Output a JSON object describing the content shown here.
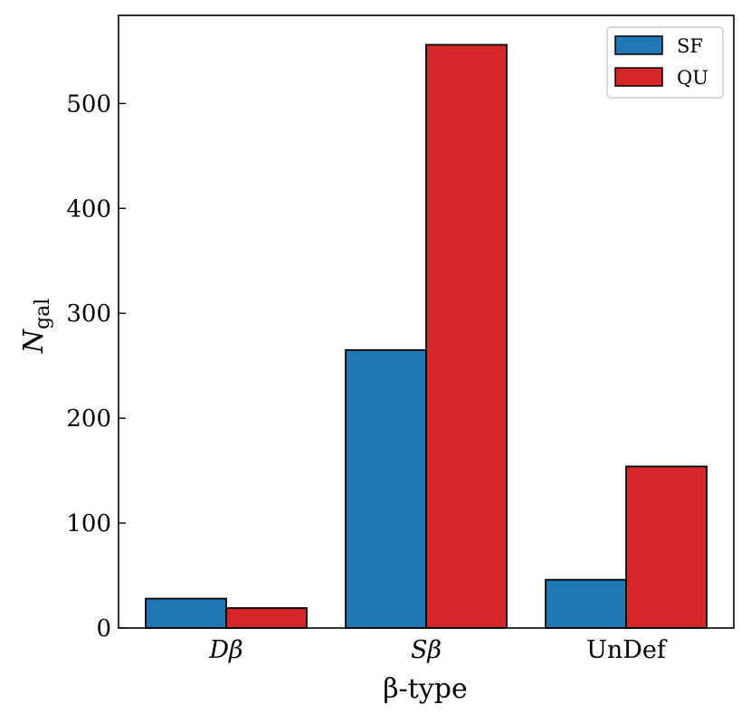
{
  "chart_data": {
    "type": "bar",
    "categories": [
      "Dβ",
      "Sβ",
      "UnDef"
    ],
    "series": [
      {
        "name": "SF",
        "color": "#1f77b4",
        "values": [
          28,
          265,
          46
        ]
      },
      {
        "name": "QU",
        "color": "#d62728",
        "values": [
          19,
          556,
          154
        ]
      }
    ],
    "xlabel": "β-type",
    "ylabel": "N",
    "ylabel_subscript": "gal",
    "ylim": [
      0,
      584
    ],
    "yticks": [
      0,
      100,
      200,
      300,
      400,
      500
    ],
    "legend_position": "top-right",
    "grid": false
  }
}
